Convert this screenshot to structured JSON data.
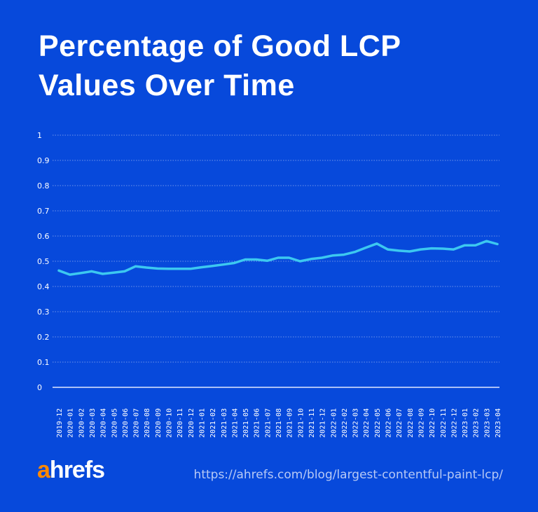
{
  "chart_data": {
    "type": "line",
    "title": "Percentage of Good LCP Values Over Time",
    "xlabel": "",
    "ylabel": "",
    "ylim": [
      0,
      1
    ],
    "yticks": [
      "0",
      "0.1",
      "0.2",
      "0.3",
      "0.4",
      "0.5",
      "0.6",
      "0.7",
      "0.8",
      "0.9",
      "1"
    ],
    "grid": true,
    "categories": [
      "2019-12",
      "2020-01",
      "2020-02",
      "2020-03",
      "2020-04",
      "2020-05",
      "2020-06",
      "2020-07",
      "2020-08",
      "2020-09",
      "2020-10",
      "2020-11",
      "2020-12",
      "2021-01",
      "2021-02",
      "2021-03",
      "2021-04",
      "2021-05",
      "2021-06",
      "2021-07",
      "2021-08",
      "2021-09",
      "2021-10",
      "2021-11",
      "2021-12",
      "2022-01",
      "2022-02",
      "2022-03",
      "2022-04",
      "2022-05",
      "2022-06",
      "2022-07",
      "2022-08",
      "2022-09",
      "2022-10",
      "2022-11",
      "2022-12",
      "2023-01",
      "2023-02",
      "2023-03",
      "2023-04"
    ],
    "values": [
      0.463,
      0.447,
      0.453,
      0.46,
      0.45,
      0.455,
      0.46,
      0.48,
      0.475,
      0.471,
      0.47,
      0.47,
      0.47,
      0.476,
      0.481,
      0.487,
      0.493,
      0.507,
      0.507,
      0.502,
      0.514,
      0.514,
      0.5,
      0.509,
      0.514,
      0.523,
      0.526,
      0.537,
      0.554,
      0.57,
      0.547,
      0.542,
      0.539,
      0.547,
      0.551,
      0.55,
      0.547,
      0.563,
      0.563,
      0.58,
      0.568
    ],
    "colors": {
      "background": "#0749DB",
      "line": "#3CC8F0",
      "grid": "#6F93EA"
    }
  },
  "footer": {
    "logo": "ahrefs",
    "logo_a": "a",
    "logo_rest": "hrefs",
    "url": "https://ahrefs.com/blog/largest-contentful-paint-lcp/"
  }
}
